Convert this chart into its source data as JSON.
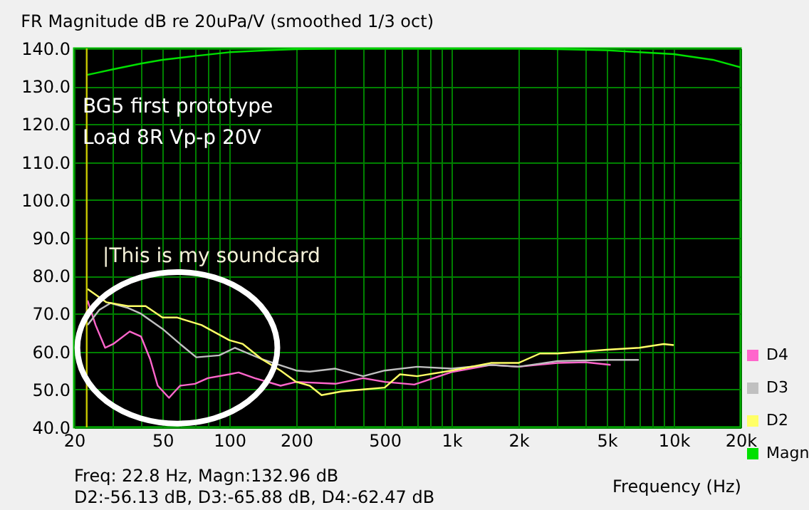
{
  "chart_data": {
    "type": "line",
    "title": "FR Magnitude dB re 20uPa/V (smoothed 1/3 oct)",
    "xlabel": "Frequency (Hz)",
    "log": "x",
    "grid": true,
    "legend": "bottom right",
    "line_style": "solid",
    "xlim": [
      20,
      20000
    ],
    "xticks": [
      20,
      {
        "value": 30,
        "label": null
      },
      {
        "value": 40,
        "label": null
      },
      50,
      {
        "value": 60,
        "label": null
      },
      {
        "value": 70,
        "label": null
      },
      {
        "value": 80,
        "label": null
      },
      {
        "value": 90,
        "label": null
      },
      100,
      200,
      {
        "value": 300,
        "label": null
      },
      {
        "value": 400,
        "label": null
      },
      500,
      {
        "value": 600,
        "label": null
      },
      {
        "value": 700,
        "label": null
      },
      {
        "value": 800,
        "label": null
      },
      {
        "value": 900,
        "label": null
      },
      {
        "value": 1000,
        "label": "1k"
      },
      {
        "value": 2000,
        "label": "2k"
      },
      {
        "value": 3000,
        "label": null
      },
      {
        "value": 4000,
        "label": null
      },
      {
        "value": 5000,
        "label": "5k"
      },
      {
        "value": 6000,
        "label": null
      },
      {
        "value": 7000,
        "label": null
      },
      {
        "value": 8000,
        "label": null
      },
      {
        "value": 9000,
        "label": null
      },
      {
        "value": 10000,
        "label": "10k"
      },
      {
        "value": 20000,
        "label": "20k"
      }
    ],
    "ylim": [
      40,
      140
    ],
    "yticks": [
      {
        "value": 40,
        "label": "40.0"
      },
      {
        "value": 50,
        "label": "50.0"
      },
      {
        "value": 60,
        "label": "60.0"
      },
      {
        "value": 70,
        "label": "70.0"
      },
      {
        "value": 80,
        "label": "80.0"
      },
      {
        "value": 90,
        "label": "90.0"
      },
      {
        "value": 100,
        "label": "100.0"
      },
      {
        "value": 110,
        "label": "110.0"
      },
      {
        "value": 120,
        "label": "120.0"
      },
      {
        "value": 130,
        "label": "130.0"
      },
      {
        "value": 140,
        "label": "140.0"
      }
    ],
    "series": [
      {
        "name": "D4",
        "color": "#ff66cc",
        "x": [
          23,
          25,
          27.6,
          30,
          35.6,
          40,
          44,
          47.6,
          53.5,
          60,
          70,
          80,
          100,
          110,
          130,
          170,
          200,
          300,
          400,
          500,
          680,
          1000,
          1500,
          2000,
          3000,
          4000,
          5200
        ],
        "values": [
          73.5,
          67,
          61,
          62,
          65.3,
          64,
          58,
          51,
          47.8,
          51,
          51.5,
          53,
          54,
          54.5,
          53,
          51,
          52,
          51.5,
          53,
          52,
          51.3,
          54.6,
          56.5,
          56,
          57,
          57.2,
          56.5
        ]
      },
      {
        "name": "D3",
        "color": "#c0c0c0",
        "x": [
          23,
          26,
          29.2,
          35,
          40,
          50,
          60,
          71,
          90,
          106,
          140,
          200,
          230,
          300,
          400,
          500,
          700,
          1000,
          1500,
          2000,
          3000,
          5000,
          6960
        ],
        "values": [
          67,
          71,
          72.8,
          71.5,
          70,
          66,
          62,
          58.5,
          59,
          61,
          58,
          55,
          54.7,
          55.5,
          53.5,
          55,
          56,
          55.5,
          56.5,
          56,
          57.5,
          57.8,
          57.8
        ]
      },
      {
        "name": "D2",
        "color": "#ffff66",
        "x": [
          23,
          28,
          35,
          42,
          50,
          58,
          75,
          100,
          115,
          140,
          170,
          200,
          230,
          260,
          320,
          400,
          500,
          586,
          700,
          1000,
          1500,
          2000,
          2500,
          3000,
          5000,
          7000,
          9000,
          10000
        ],
        "values": [
          76.5,
          73,
          72,
          72,
          69,
          69,
          67,
          63,
          62,
          58,
          55,
          52,
          51,
          48.5,
          49.5,
          50,
          50.5,
          54,
          53.5,
          55,
          57,
          57,
          59.5,
          59.5,
          60.5,
          61,
          62,
          61.7
        ]
      },
      {
        "name": "Magn",
        "color": "#00e000",
        "x": [
          22.8,
          25,
          30,
          40,
          50,
          70,
          100,
          150,
          200,
          300,
          500,
          1000,
          2000,
          3000,
          5000,
          7000,
          10000,
          15000,
          20000
        ],
        "values": [
          133,
          133.5,
          134.5,
          136,
          137,
          138,
          139,
          139.5,
          139.8,
          140,
          140,
          140,
          140,
          139.8,
          139.5,
          139,
          138.5,
          137,
          135
        ]
      }
    ],
    "ref_lines": [
      {
        "axis": "x",
        "value": 22.8,
        "color": "#c8c800"
      }
    ],
    "annotations": [
      "BG5 first prototype",
      "Load 8R Vp-p 20V",
      "|This is my soundcard",
      "Freq: 22.8 Hz, Magn:132.96 dB",
      "D2:-56.13 dB, D3:-65.88 dB, D4:-62.47 dB"
    ]
  }
}
